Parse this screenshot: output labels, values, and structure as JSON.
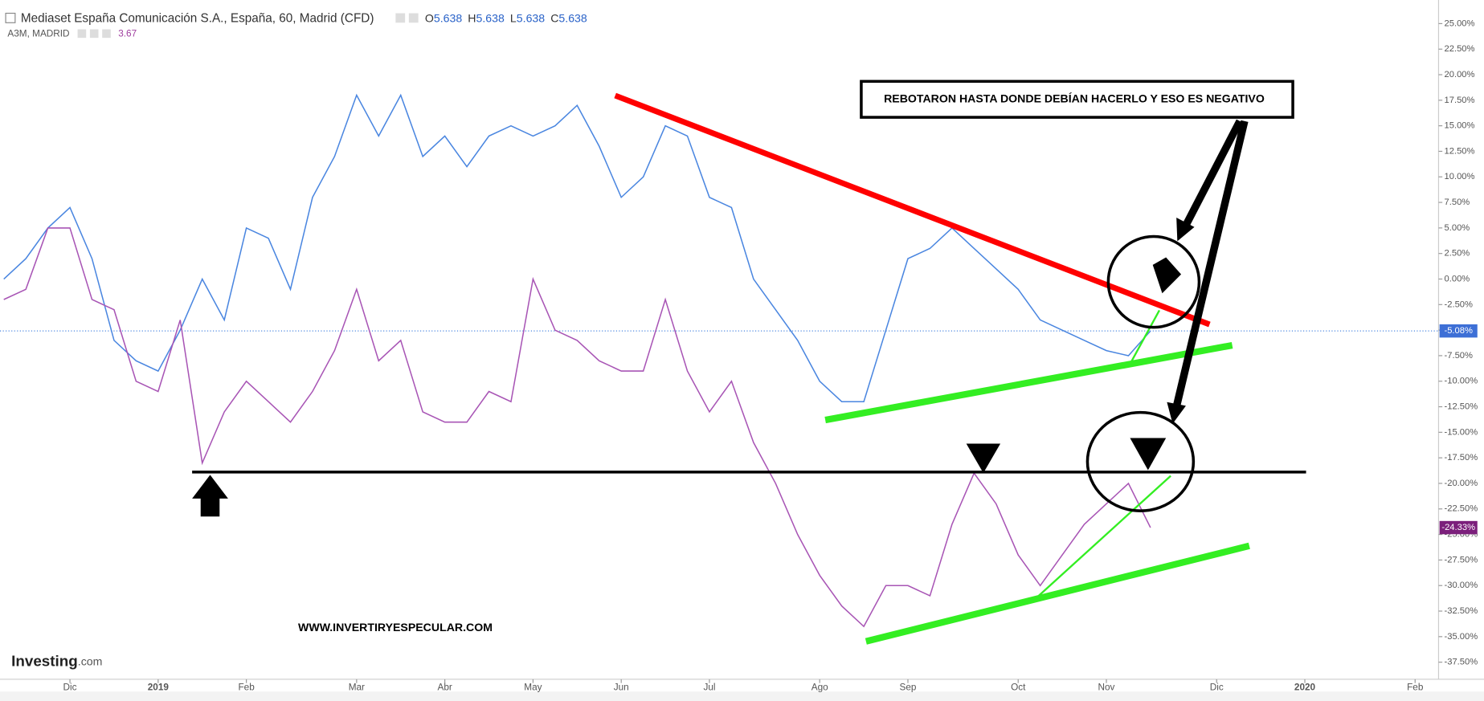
{
  "header": {
    "title": "Mediaset España Comunicación S.A., España, 60, Madrid (CFD)",
    "ohlc": [
      {
        "key": "O",
        "value": "5.638"
      },
      {
        "key": "H",
        "value": "5.638"
      },
      {
        "key": "L",
        "value": "5.638"
      },
      {
        "key": "C",
        "value": "5.638"
      }
    ],
    "compare": {
      "name": "A3M, MADRID",
      "value": "3.67"
    }
  },
  "chart_data": {
    "type": "line",
    "categories": [
      null,
      null,
      null,
      "Dic",
      null,
      null,
      null,
      "2019",
      null,
      null,
      null,
      "Feb",
      null,
      null,
      null,
      null,
      "Mar",
      null,
      null,
      null,
      "Abr",
      null,
      null,
      null,
      "May",
      null,
      null,
      null,
      "Jun",
      null,
      null,
      null,
      "Jul",
      null,
      null,
      null,
      null,
      "Ago",
      null,
      null,
      null,
      "Sep",
      null,
      null,
      null,
      null,
      "Oct",
      null,
      null,
      null,
      "Nov",
      null,
      null,
      null,
      null,
      "Dic",
      null,
      null,
      null,
      "2020",
      null,
      null,
      null,
      null,
      "Feb",
      null
    ],
    "series": [
      {
        "name": "Mediaset España Comunicación S.A.",
        "color": "#4a86e0",
        "last_label": "-5.08%",
        "values": [
          0,
          2,
          5,
          7,
          2,
          -6,
          -8,
          -9,
          -5,
          0,
          -4,
          5,
          4,
          -1,
          8,
          12,
          18,
          14,
          18,
          12,
          14,
          11,
          14,
          15,
          14,
          15,
          17,
          13,
          8,
          10,
          15,
          14,
          8,
          7,
          0,
          -3,
          -6,
          -10,
          -12,
          -12,
          -5,
          2,
          3,
          5,
          3,
          1,
          -1,
          -4,
          -5,
          -6,
          -7,
          -7.5,
          -5.08,
          null,
          null,
          null,
          null,
          null,
          null,
          null,
          null,
          null,
          null,
          null,
          null,
          null
        ]
      },
      {
        "name": "A3M, MADRID",
        "color": "#a855b5",
        "last_label": "-24.33%",
        "values": [
          -2,
          -1,
          5,
          5,
          -2,
          -3,
          -10,
          -11,
          -4,
          -18,
          -13,
          -10,
          -12,
          -14,
          -11,
          -7,
          -1,
          -8,
          -6,
          -13,
          -14,
          -14,
          -11,
          -12,
          0,
          -5,
          -6,
          -8,
          -9,
          -9,
          -2,
          -9,
          -13,
          -10,
          -16,
          -20,
          -25,
          -29,
          -32,
          -34,
          -30,
          -30,
          -31,
          -24,
          -19,
          -22,
          -27,
          -30,
          -27,
          -24,
          -22,
          -20,
          -24.33,
          null,
          null,
          null,
          null,
          null,
          null,
          null,
          null,
          null,
          null,
          null,
          null,
          null
        ]
      }
    ],
    "ylim": [
      -39.17,
      27.31
    ],
    "yticks": [
      {
        "value": 25,
        "label": "25.00%"
      },
      {
        "value": 22.5,
        "label": "22.50%"
      },
      {
        "value": 20,
        "label": "20.00%"
      },
      {
        "value": 17.5,
        "label": "17.50%"
      },
      {
        "value": 15,
        "label": "15.00%"
      },
      {
        "value": 12.5,
        "label": "12.50%"
      },
      {
        "value": 10,
        "label": "10.00%"
      },
      {
        "value": 7.5,
        "label": "7.50%"
      },
      {
        "value": 5,
        "label": "5.00%"
      },
      {
        "value": 2.5,
        "label": "2.50%"
      },
      {
        "value": 0,
        "label": "0.00%"
      },
      {
        "value": -2.5,
        "label": "-2.50%"
      },
      {
        "value": -5,
        "label": "-5.00%"
      },
      {
        "value": -7.5,
        "label": "-7.50%"
      },
      {
        "value": -10,
        "label": "-10.00%"
      },
      {
        "value": -12.5,
        "label": "-12.50%"
      },
      {
        "value": -15,
        "label": "-15.00%"
      },
      {
        "value": -17.5,
        "label": "-17.50%"
      },
      {
        "value": -20,
        "label": "-20.00%"
      },
      {
        "value": -22.5,
        "label": "-22.50%"
      },
      {
        "value": -25,
        "label": "-25.00%"
      },
      {
        "value": -27.5,
        "label": "-27.50%"
      },
      {
        "value": -30,
        "label": "-30.00%"
      },
      {
        "value": -32.5,
        "label": "-32.50%"
      },
      {
        "value": -35,
        "label": "-35.00%"
      },
      {
        "value": -37.5,
        "label": "-37.50%"
      }
    ],
    "annotations": {
      "callout": "REBOTARON HASTA DONDE DEBÍAN HACERLO  Y ESO ES NEGATIVO",
      "watermark": "WWW.INVERTIRYESPECULAR.COM",
      "logo": "Investing",
      "logo_suffix": ".com"
    }
  }
}
